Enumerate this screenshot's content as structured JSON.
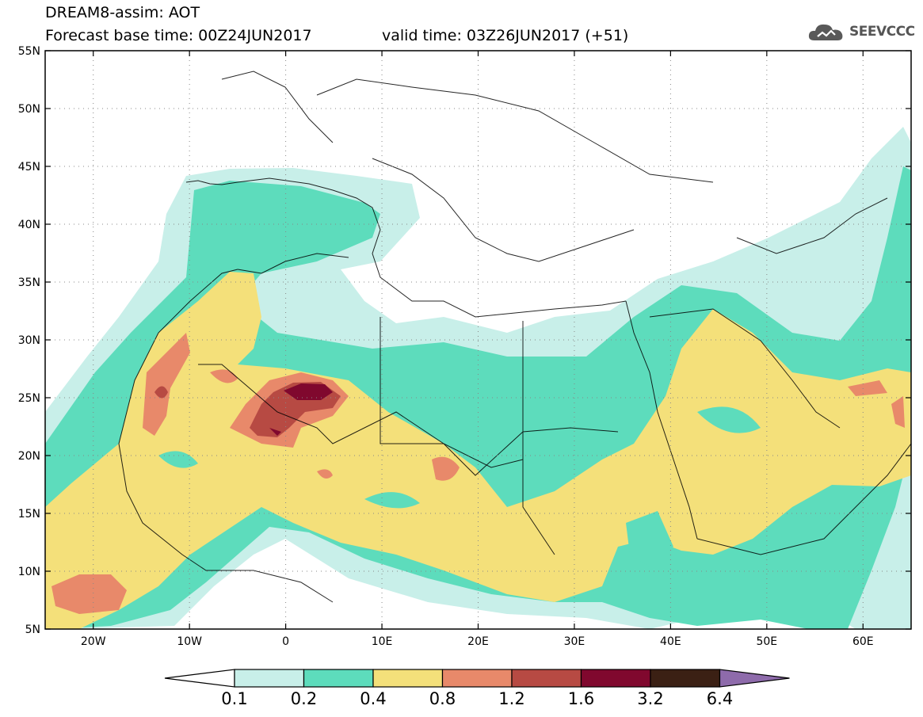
{
  "header": {
    "model_line": "DREAM8-assim: AOT",
    "base_time_line": "Forecast base time: 00Z24JUN2017",
    "valid_time_line": "valid time: 03Z26JUN2017 (+51)"
  },
  "logo": {
    "text": "SEEVCCC",
    "icon": "cloud-icon"
  },
  "map": {
    "y_ticks": [
      "55N",
      "50N",
      "45N",
      "40N",
      "35N",
      "30N",
      "25N",
      "20N",
      "15N",
      "10N",
      "5N"
    ],
    "x_ticks": [
      "20W",
      "10W",
      "0",
      "10E",
      "20E",
      "30E",
      "40E",
      "50E",
      "60E"
    ],
    "lon_range": [
      -25,
      65
    ],
    "lat_range": [
      5,
      55
    ]
  },
  "colorbar": {
    "labels": [
      "0.1",
      "0.2",
      "0.4",
      "0.8",
      "1.2",
      "1.6",
      "3.2",
      "6.4"
    ],
    "colors": [
      "#c8efe9",
      "#5ddcbc",
      "#f4e07a",
      "#e8896a",
      "#b74a43",
      "#80082e",
      "#3b2014",
      "#8e6bab"
    ]
  }
}
